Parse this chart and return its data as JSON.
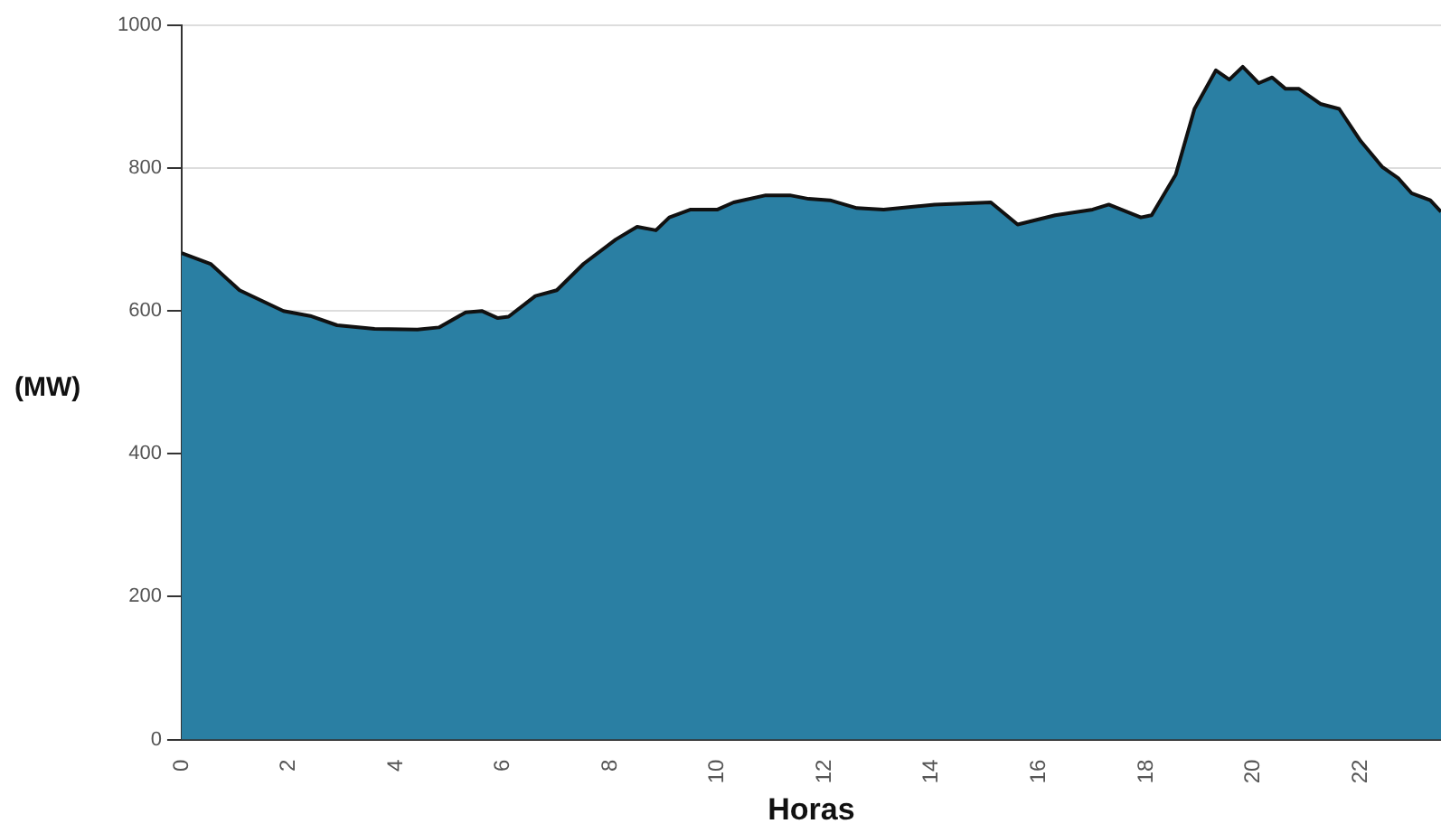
{
  "chart_data": {
    "type": "area",
    "xlabel": "Horas",
    "ylabel": "(MW)",
    "x": [
      0,
      0.54,
      1.08,
      1.9,
      2.4,
      2.9,
      3.6,
      4.4,
      4.8,
      5.3,
      5.6,
      5.9,
      6.1,
      6.6,
      7.0,
      7.5,
      8.1,
      8.5,
      8.85,
      9.1,
      9.5,
      10.0,
      10.3,
      10.9,
      11.35,
      11.7,
      12.1,
      12.6,
      13.1,
      14.05,
      15.1,
      15.6,
      16.3,
      17.0,
      17.3,
      17.9,
      18.1,
      18.55,
      18.9,
      19.3,
      19.55,
      19.8,
      20.1,
      20.35,
      20.6,
      20.85,
      21.25,
      21.6,
      22.0,
      22.4,
      22.7,
      22.95,
      23.3,
      23.5
    ],
    "series": [
      {
        "color": "#2a7fa3",
        "values": [
          681,
          666,
          629,
          600,
          593,
          580,
          575,
          574,
          577,
          598,
          600,
          590,
          592,
          621,
          629,
          666,
          700,
          718,
          713,
          731,
          742,
          742,
          752,
          762,
          762,
          757,
          755,
          744,
          742,
          749,
          752,
          721,
          734,
          742,
          749,
          731,
          734,
          791,
          883,
          937,
          924,
          942,
          919,
          927,
          911,
          911,
          890,
          883,
          838,
          802,
          786,
          765,
          755,
          739
        ]
      }
    ],
    "xlim": [
      0,
      23.5
    ],
    "xticks": [
      0,
      2,
      4,
      6,
      8,
      10,
      12,
      14,
      16,
      18,
      20,
      22
    ],
    "ylim": [
      0,
      1000
    ],
    "yticks": [
      0,
      200,
      400,
      600,
      800,
      1000
    ],
    "grid": "y",
    "legend": false
  }
}
